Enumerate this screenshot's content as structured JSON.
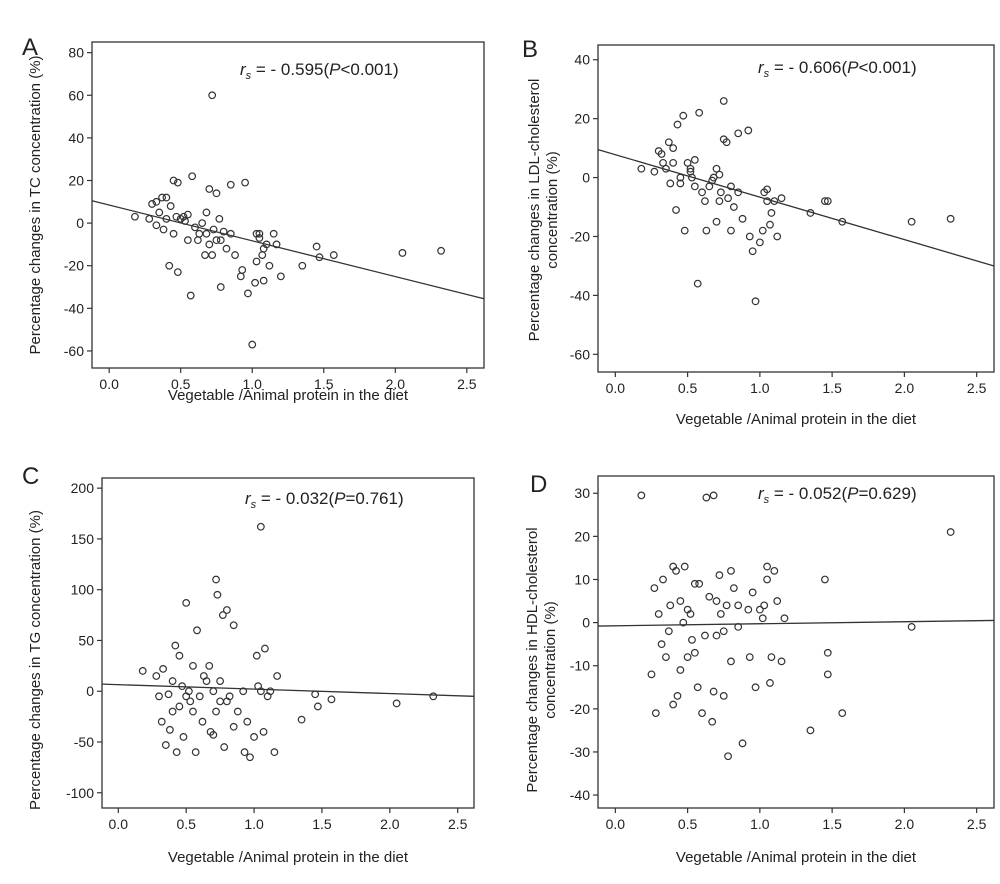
{
  "chart_data": [
    {
      "type": "scatter",
      "panel": "A",
      "xlabel": "Vegetable /Animal protein in the diet",
      "ylabel": "Percentage changes in TC concentration (%)",
      "xticks": [
        "0.0",
        "0.5",
        "1.0",
        "1.5",
        "2.0",
        "2.5"
      ],
      "yticks": [
        "80",
        "60",
        "40",
        "20",
        "0",
        "-20",
        "-40",
        "-60"
      ],
      "xlim": [
        -0.12,
        2.62
      ],
      "ylim": [
        -68,
        85
      ],
      "stat_r": "r",
      "stat_sub": "s",
      "stat_pre": " = - 0.595(",
      "stat_p": "P",
      "stat_post": "<0.001)",
      "fit": {
        "x": [
          -0.12,
          2.62
        ],
        "y": [
          10.5,
          -35.5
        ]
      },
      "points": [
        [
          0.18,
          3
        ],
        [
          0.28,
          2
        ],
        [
          0.3,
          9
        ],
        [
          0.33,
          10
        ],
        [
          0.33,
          -1
        ],
        [
          0.35,
          5
        ],
        [
          0.37,
          12
        ],
        [
          0.38,
          -3
        ],
        [
          0.4,
          2
        ],
        [
          0.4,
          12
        ],
        [
          0.42,
          -20
        ],
        [
          0.43,
          8
        ],
        [
          0.45,
          -5
        ],
        [
          0.45,
          20
        ],
        [
          0.47,
          3
        ],
        [
          0.48,
          19
        ],
        [
          0.48,
          -23
        ],
        [
          0.5,
          2
        ],
        [
          0.52,
          3
        ],
        [
          0.53,
          1
        ],
        [
          0.55,
          -8
        ],
        [
          0.55,
          4
        ],
        [
          0.57,
          -34
        ],
        [
          0.58,
          22
        ],
        [
          0.6,
          -2
        ],
        [
          0.62,
          -8
        ],
        [
          0.63,
          -5
        ],
        [
          0.65,
          0
        ],
        [
          0.67,
          -15
        ],
        [
          0.68,
          5
        ],
        [
          0.68,
          -5
        ],
        [
          0.7,
          -10
        ],
        [
          0.7,
          16
        ],
        [
          0.72,
          60
        ],
        [
          0.72,
          -15
        ],
        [
          0.73,
          -3
        ],
        [
          0.75,
          14
        ],
        [
          0.75,
          -8
        ],
        [
          0.77,
          2
        ],
        [
          0.78,
          -30
        ],
        [
          0.78,
          -8
        ],
        [
          0.8,
          -4
        ],
        [
          0.82,
          -12
        ],
        [
          0.85,
          18
        ],
        [
          0.85,
          -5
        ],
        [
          0.88,
          -15
        ],
        [
          0.92,
          -25
        ],
        [
          0.93,
          -22
        ],
        [
          0.95,
          19
        ],
        [
          0.97,
          -33
        ],
        [
          1.0,
          -57
        ],
        [
          1.02,
          -28
        ],
        [
          1.03,
          -5
        ],
        [
          1.03,
          -18
        ],
        [
          1.05,
          -7
        ],
        [
          1.05,
          -5
        ],
        [
          1.07,
          -15
        ],
        [
          1.08,
          -12
        ],
        [
          1.08,
          -27
        ],
        [
          1.1,
          -10
        ],
        [
          1.12,
          -20
        ],
        [
          1.15,
          -5
        ],
        [
          1.17,
          -10
        ],
        [
          1.2,
          -25
        ],
        [
          1.35,
          -20
        ],
        [
          1.45,
          -11
        ],
        [
          1.47,
          -16
        ],
        [
          1.57,
          -15
        ],
        [
          2.05,
          -14
        ],
        [
          2.32,
          -13
        ]
      ]
    },
    {
      "type": "scatter",
      "panel": "B",
      "xlabel": "Vegetable /Animal protein in the diet",
      "ylabel_line1": "Percentage changes in LDL-cholesterol",
      "ylabel_line2": "concentration (%)",
      "xticks": [
        "0.0",
        "0.5",
        "1.0",
        "1.5",
        "2.0",
        "2.5"
      ],
      "yticks": [
        "40",
        "20",
        "0",
        "-20",
        "-40",
        "-60"
      ],
      "xlim": [
        -0.12,
        2.62
      ],
      "ylim": [
        -66,
        45
      ],
      "stat_r": "r",
      "stat_sub": "s",
      "stat_pre": " = - 0.606(",
      "stat_p": "P",
      "stat_post": "<0.001)",
      "fit": {
        "x": [
          -0.12,
          2.62
        ],
        "y": [
          9.5,
          -30.0
        ]
      },
      "points": [
        [
          0.18,
          3
        ],
        [
          0.27,
          2
        ],
        [
          0.3,
          9
        ],
        [
          0.32,
          8
        ],
        [
          0.33,
          5
        ],
        [
          0.35,
          3
        ],
        [
          0.37,
          12
        ],
        [
          0.38,
          -2
        ],
        [
          0.4,
          10
        ],
        [
          0.4,
          5
        ],
        [
          0.42,
          -11
        ],
        [
          0.43,
          18
        ],
        [
          0.45,
          -2
        ],
        [
          0.45,
          0
        ],
        [
          0.47,
          21
        ],
        [
          0.48,
          -18
        ],
        [
          0.5,
          5
        ],
        [
          0.52,
          3
        ],
        [
          0.52,
          2
        ],
        [
          0.53,
          0
        ],
        [
          0.55,
          -3
        ],
        [
          0.55,
          6
        ],
        [
          0.57,
          -36
        ],
        [
          0.58,
          22
        ],
        [
          0.6,
          -5
        ],
        [
          0.62,
          -8
        ],
        [
          0.63,
          -18
        ],
        [
          0.65,
          -3
        ],
        [
          0.67,
          -1
        ],
        [
          0.68,
          0
        ],
        [
          0.7,
          -15
        ],
        [
          0.7,
          3
        ],
        [
          0.72,
          -8
        ],
        [
          0.72,
          1
        ],
        [
          0.73,
          -5
        ],
        [
          0.75,
          26
        ],
        [
          0.75,
          13
        ],
        [
          0.77,
          12
        ],
        [
          0.78,
          -7
        ],
        [
          0.8,
          -3
        ],
        [
          0.8,
          -18
        ],
        [
          0.82,
          -10
        ],
        [
          0.85,
          -5
        ],
        [
          0.85,
          15
        ],
        [
          0.88,
          -14
        ],
        [
          0.92,
          16
        ],
        [
          0.93,
          -20
        ],
        [
          0.95,
          -25
        ],
        [
          0.97,
          -42
        ],
        [
          1.0,
          -22
        ],
        [
          1.02,
          -18
        ],
        [
          1.03,
          -5
        ],
        [
          1.05,
          -8
        ],
        [
          1.05,
          -4
        ],
        [
          1.07,
          -16
        ],
        [
          1.08,
          -12
        ],
        [
          1.1,
          -8
        ],
        [
          1.12,
          -20
        ],
        [
          1.15,
          -7
        ],
        [
          1.35,
          -12
        ],
        [
          1.45,
          -8
        ],
        [
          1.47,
          -8
        ],
        [
          1.57,
          -15
        ],
        [
          2.05,
          -15
        ],
        [
          2.32,
          -14
        ]
      ]
    },
    {
      "type": "scatter",
      "panel": "C",
      "xlabel": "Vegetable /Animal protein in the diet",
      "ylabel": "Percentage changes in TG concentration (%)",
      "xticks": [
        "0.0",
        "0.5",
        "1.0",
        "1.5",
        "2.0",
        "2.5"
      ],
      "yticks": [
        "200",
        "150",
        "100",
        "50",
        "0",
        "-50",
        "-100"
      ],
      "xlim": [
        -0.12,
        2.62
      ],
      "ylim": [
        -115,
        210
      ],
      "stat_r": "r",
      "stat_sub": "s",
      "stat_pre": " = - 0.032(",
      "stat_p": "P",
      "stat_post": "=0.761)",
      "fit": {
        "x": [
          -0.12,
          2.62
        ],
        "y": [
          7.0,
          -5.0
        ]
      },
      "points": [
        [
          0.18,
          20
        ],
        [
          0.28,
          15
        ],
        [
          0.3,
          -5
        ],
        [
          0.32,
          -30
        ],
        [
          0.33,
          22
        ],
        [
          0.35,
          -53
        ],
        [
          0.37,
          -3
        ],
        [
          0.38,
          -38
        ],
        [
          0.4,
          10
        ],
        [
          0.4,
          -20
        ],
        [
          0.42,
          45
        ],
        [
          0.43,
          -60
        ],
        [
          0.45,
          -15
        ],
        [
          0.45,
          35
        ],
        [
          0.47,
          5
        ],
        [
          0.48,
          -45
        ],
        [
          0.5,
          -5
        ],
        [
          0.5,
          87
        ],
        [
          0.52,
          0
        ],
        [
          0.53,
          -10
        ],
        [
          0.55,
          -20
        ],
        [
          0.55,
          25
        ],
        [
          0.57,
          -60
        ],
        [
          0.58,
          60
        ],
        [
          0.6,
          -5
        ],
        [
          0.62,
          -30
        ],
        [
          0.63,
          15
        ],
        [
          0.65,
          10
        ],
        [
          0.67,
          25
        ],
        [
          0.68,
          -40
        ],
        [
          0.7,
          -43
        ],
        [
          0.7,
          0
        ],
        [
          0.72,
          110
        ],
        [
          0.72,
          -20
        ],
        [
          0.73,
          95
        ],
        [
          0.75,
          10
        ],
        [
          0.75,
          -10
        ],
        [
          0.77,
          75
        ],
        [
          0.78,
          -55
        ],
        [
          0.8,
          -10
        ],
        [
          0.8,
          80
        ],
        [
          0.82,
          -5
        ],
        [
          0.85,
          65
        ],
        [
          0.85,
          -35
        ],
        [
          0.88,
          -20
        ],
        [
          0.92,
          0
        ],
        [
          0.93,
          -60
        ],
        [
          0.95,
          -30
        ],
        [
          0.97,
          -65
        ],
        [
          1.0,
          -45
        ],
        [
          1.02,
          35
        ],
        [
          1.03,
          5
        ],
        [
          1.05,
          0
        ],
        [
          1.05,
          162
        ],
        [
          1.07,
          -40
        ],
        [
          1.08,
          42
        ],
        [
          1.1,
          -5
        ],
        [
          1.12,
          0
        ],
        [
          1.15,
          -60
        ],
        [
          1.17,
          15
        ],
        [
          1.35,
          -28
        ],
        [
          1.45,
          -3
        ],
        [
          1.47,
          -15
        ],
        [
          1.57,
          -8
        ],
        [
          2.05,
          -12
        ],
        [
          2.32,
          -5
        ]
      ]
    },
    {
      "type": "scatter",
      "panel": "D",
      "xlabel": "Vegetable /Animal protein in the diet",
      "ylabel_line1": "Percentage changes in HDL-cholesterol",
      "ylabel_line2": "concentration (%)",
      "xticks": [
        "0.0",
        "0.5",
        "1.0",
        "1.5",
        "2.0",
        "2.5"
      ],
      "yticks": [
        "30",
        "20",
        "10",
        "0",
        "-10",
        "-20",
        "-30",
        "-40"
      ],
      "xlim": [
        -0.12,
        2.62
      ],
      "ylim": [
        -43,
        34
      ],
      "stat_r": "r",
      "stat_sub": "s",
      "stat_pre": " = - 0.052(",
      "stat_p": "P",
      "stat_post": "=0.629)",
      "fit": {
        "x": [
          -0.12,
          2.62
        ],
        "y": [
          -0.8,
          0.5
        ]
      },
      "points": [
        [
          0.18,
          29.5
        ],
        [
          0.25,
          -12
        ],
        [
          0.27,
          8
        ],
        [
          0.28,
          -21
        ],
        [
          0.3,
          2
        ],
        [
          0.32,
          -5
        ],
        [
          0.33,
          10
        ],
        [
          0.35,
          -8
        ],
        [
          0.37,
          -2
        ],
        [
          0.38,
          4
        ],
        [
          0.4,
          -19
        ],
        [
          0.4,
          13
        ],
        [
          0.42,
          12
        ],
        [
          0.43,
          -17
        ],
        [
          0.45,
          -11
        ],
        [
          0.45,
          5
        ],
        [
          0.47,
          0
        ],
        [
          0.48,
          13
        ],
        [
          0.5,
          -8
        ],
        [
          0.5,
          3
        ],
        [
          0.52,
          2
        ],
        [
          0.53,
          -4
        ],
        [
          0.55,
          -7
        ],
        [
          0.55,
          9
        ],
        [
          0.57,
          -15
        ],
        [
          0.58,
          9
        ],
        [
          0.6,
          -21
        ],
        [
          0.62,
          -3
        ],
        [
          0.63,
          29
        ],
        [
          0.65,
          6
        ],
        [
          0.67,
          -23
        ],
        [
          0.68,
          -16
        ],
        [
          0.68,
          29.5
        ],
        [
          0.7,
          5
        ],
        [
          0.7,
          -3
        ],
        [
          0.72,
          11
        ],
        [
          0.73,
          2
        ],
        [
          0.75,
          -17
        ],
        [
          0.75,
          -2
        ],
        [
          0.77,
          4
        ],
        [
          0.78,
          -31
        ],
        [
          0.8,
          -9
        ],
        [
          0.8,
          12
        ],
        [
          0.82,
          8
        ],
        [
          0.85,
          -1
        ],
        [
          0.85,
          4
        ],
        [
          0.88,
          -28
        ],
        [
          0.92,
          3
        ],
        [
          0.93,
          -8
        ],
        [
          0.95,
          7
        ],
        [
          0.97,
          -15
        ],
        [
          1.0,
          3
        ],
        [
          1.02,
          1
        ],
        [
          1.03,
          4
        ],
        [
          1.05,
          10
        ],
        [
          1.05,
          13
        ],
        [
          1.07,
          -14
        ],
        [
          1.08,
          -8
        ],
        [
          1.1,
          12
        ],
        [
          1.12,
          5
        ],
        [
          1.15,
          -9
        ],
        [
          1.17,
          1
        ],
        [
          1.35,
          -25
        ],
        [
          1.45,
          10
        ],
        [
          1.47,
          -12
        ],
        [
          1.47,
          -7
        ],
        [
          1.57,
          -21
        ],
        [
          2.05,
          -1
        ],
        [
          2.32,
          21
        ]
      ]
    }
  ]
}
